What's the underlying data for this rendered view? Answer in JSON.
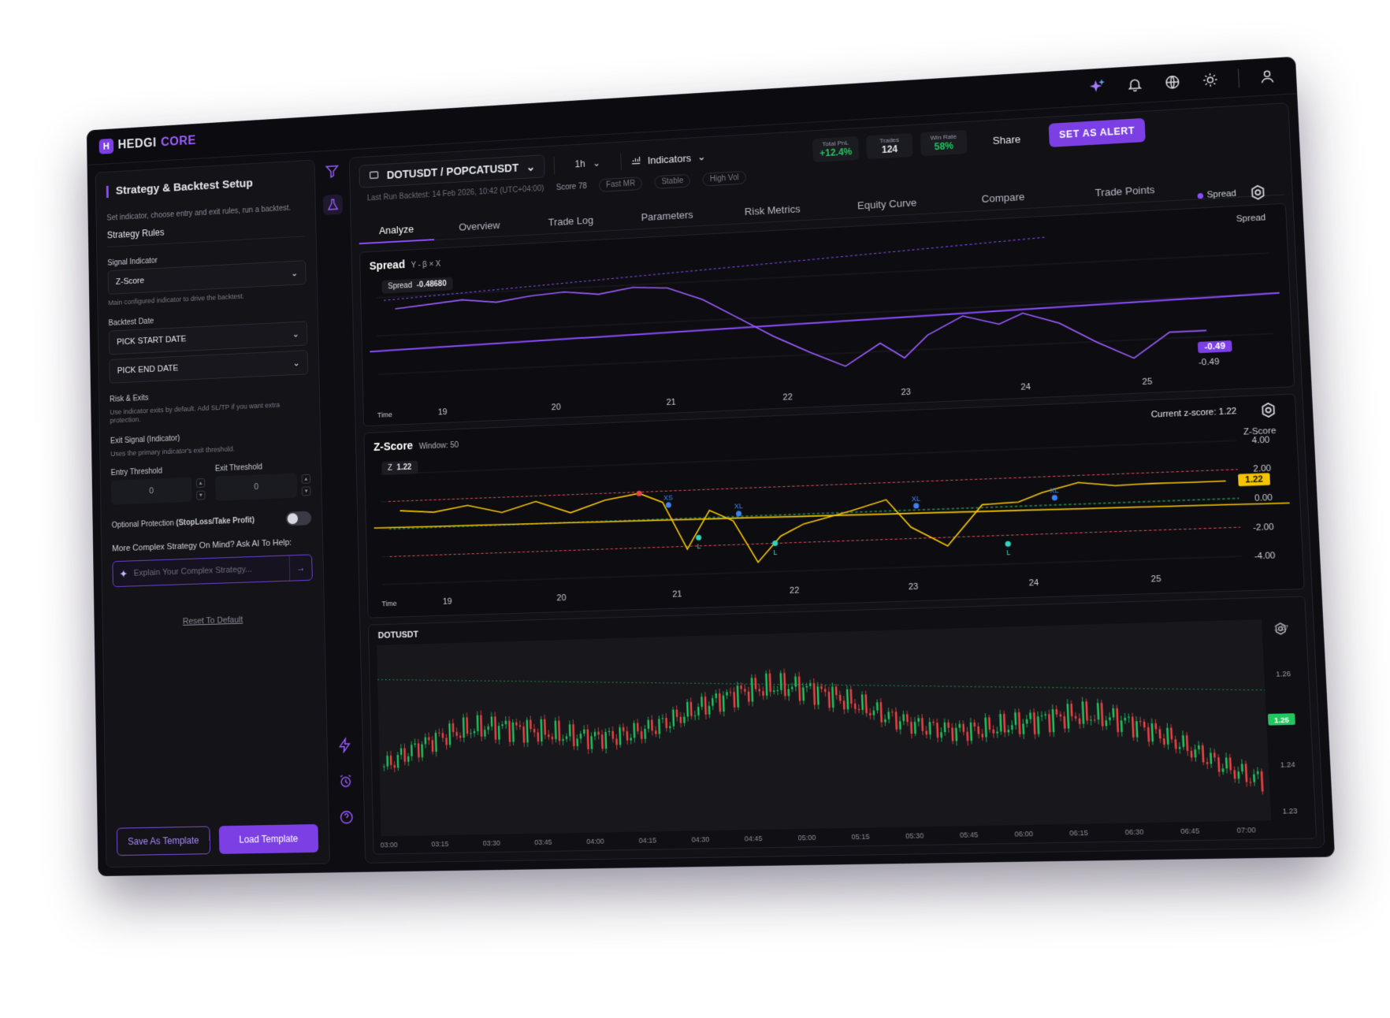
{
  "brand": {
    "hedgi": "HEDGI",
    "core": "CORE",
    "logo_letter": "H"
  },
  "topbar": {
    "icons": [
      "sparkle-icon",
      "bell-icon",
      "globe-icon",
      "sun-icon",
      "user-icon"
    ]
  },
  "left_panel": {
    "title": "Strategy & Backtest Setup",
    "subtitle": "Set indicator, choose entry and exit rules, run a backtest.",
    "section": "Strategy Rules",
    "signal_label": "Signal Indicator",
    "signal_value": "Z-Score",
    "signal_hint": "Main configured indicator to drive the backtest.",
    "date_label": "Backtest Date",
    "start_date": "PICK START DATE",
    "end_date": "PICK END DATE",
    "risk_label": "Risk & Exits",
    "risk_hint": "Use indicator exits by default. Add SL/TP if you want extra protection.",
    "exit_signal_label": "Exit Signal (Indicator)",
    "exit_signal_hint": "Uses the primary indicator's exit threshold.",
    "entry_threshold_label": "Entry Threshold",
    "entry_threshold_value": "0",
    "exit_threshold_label": "Exit Threshold",
    "exit_threshold_value": "0",
    "protection_label": "Optional Protection",
    "protection_bold": "(StopLoss/Take Profit)",
    "ai_question": "More Complex Strategy On Mind? Ask AI To Help:",
    "ai_placeholder": "Explain Your Complex Strategy...",
    "reset": "Reset To Default",
    "save_template": "Save As Template",
    "load_template": "Load Template"
  },
  "toolbar": {
    "pair": "DOTUSDT / POPCATUSDT",
    "timeframe": "1h",
    "indicators": "Indicators",
    "last_run": "Last Run Backtest: 14 Feb 2026, 10:42 (UTC+04:00)",
    "score": "Score 78",
    "chips": [
      "Fast MR",
      "Stable",
      "High Vol"
    ],
    "stats": [
      {
        "key": "Total PnL",
        "value": "+12.4%",
        "color": "#22c55e"
      },
      {
        "key": "Trades",
        "value": "124",
        "color": "#ffffff"
      },
      {
        "key": "Win Rate",
        "value": "58%",
        "color": "#22c55e"
      }
    ],
    "share": "Share",
    "alert": "SET AS ALERT"
  },
  "tabs": [
    "Analyze",
    "Overview",
    "Trade Log",
    "Parameters",
    "Risk Metrics",
    "Equity Curve",
    "Compare",
    "Trade Points"
  ],
  "spread_panel": {
    "title": "Spread",
    "formula": "Y - β × X",
    "legend": "Spread",
    "axis_title": "Spread",
    "tooltip_label": "Spread",
    "tooltip_value": "-0.48680",
    "last_badge": "-0.49",
    "last_text": "-0.49",
    "time_label": "Time"
  },
  "zscore_panel": {
    "title": "Z-Score",
    "window": "Window: 50",
    "current": "Current z-score: 1.22",
    "axis_title": "Z-Score",
    "tooltip_label": "Z",
    "tooltip_value": "1.22",
    "badge": "1.22",
    "time_label": "Time",
    "y_ticks": [
      "4.00",
      "2.00",
      "0.00",
      "-2.00",
      "-4.00"
    ],
    "markers": [
      "XS",
      "XL",
      "L",
      "L",
      "XL",
      "L",
      "XL"
    ]
  },
  "candle_panel": {
    "title": "DOTUSDT",
    "y_ticks": [
      "1.27",
      "1.26",
      "1.25",
      "1.24",
      "1.23"
    ],
    "last_badge": "1.25",
    "x_ticks": [
      "03:00",
      "03:15",
      "03:30",
      "03:45",
      "04:00",
      "04:15",
      "04:30",
      "04:45",
      "05:00",
      "05:15",
      "05:30",
      "05:45",
      "06:00",
      "06:15",
      "06:30",
      "06:45",
      "07:00"
    ]
  },
  "chart_data": [
    {
      "type": "line",
      "title": "Spread",
      "subtitle": "Y - β × X",
      "x_ticks": [
        "19",
        "20",
        "21",
        "22",
        "23",
        "24",
        "25"
      ],
      "series": [
        {
          "name": "Spread",
          "x": [
            18.6,
            18.9,
            19.2,
            19.5,
            19.8,
            20.1,
            20.4,
            20.7,
            21.0,
            21.3,
            21.6,
            21.9,
            22.2,
            22.5,
            22.8,
            23.0,
            23.2,
            23.5,
            23.8,
            24.0,
            24.3,
            24.6,
            24.9,
            25.2,
            25.5
          ],
          "y": [
            0.55,
            0.6,
            0.65,
            0.58,
            0.66,
            0.7,
            0.63,
            0.72,
            0.68,
            0.45,
            0.1,
            -0.25,
            -0.55,
            -0.82,
            -0.45,
            -0.72,
            -0.35,
            -0.05,
            -0.22,
            -0.05,
            -0.25,
            -0.6,
            -0.9,
            -0.49,
            -0.49
          ]
        }
      ],
      "last_value": -0.49
    },
    {
      "type": "line",
      "title": "Z-Score",
      "x_ticks": [
        "19",
        "20",
        "21",
        "22",
        "23",
        "24",
        "25"
      ],
      "y_ticks": [
        4.0,
        2.0,
        0.0,
        -2.0,
        -4.0
      ],
      "ylim": [
        -4.5,
        4.5
      ],
      "series": [
        {
          "name": "Z-Score",
          "x": [
            18.6,
            18.9,
            19.2,
            19.5,
            19.8,
            20.1,
            20.4,
            20.7,
            20.9,
            21.1,
            21.3,
            21.5,
            21.7,
            21.9,
            22.1,
            22.5,
            22.8,
            23.0,
            23.3,
            23.6,
            23.9,
            24.1,
            24.4,
            24.7,
            25.0,
            25.3,
            25.6
          ],
          "y": [
            1.3,
            1.1,
            1.5,
            0.9,
            1.6,
            0.7,
            1.5,
            1.9,
            1.2,
            -2.2,
            0.5,
            -0.3,
            -3.3,
            -1.5,
            -0.7,
            0.1,
            0.8,
            -1.2,
            -2.6,
            0.2,
            0.3,
            0.9,
            1.5,
            1.2,
            1.25,
            1.22,
            1.22
          ]
        }
      ],
      "thresholds": [
        2.0,
        0.0,
        -2.0
      ],
      "current": 1.22
    }
  ]
}
